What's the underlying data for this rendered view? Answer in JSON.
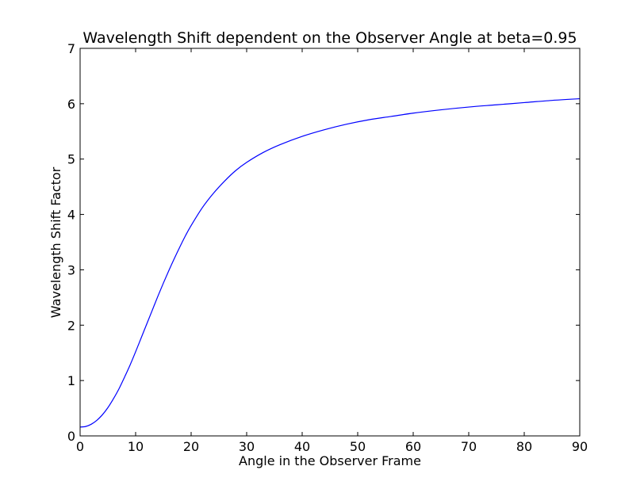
{
  "chart_data": {
    "type": "line",
    "title": "Wavelength Shift dependent on the Observer Angle at beta=0.95",
    "xlabel": "Angle in the Observer Frame",
    "ylabel": "Wavelength Shift Factor",
    "xlim": [
      0,
      90
    ],
    "ylim": [
      0,
      7
    ],
    "xticks": [
      "0",
      "10",
      "20",
      "30",
      "40",
      "50",
      "60",
      "70",
      "80",
      "90"
    ],
    "yticks": [
      "0",
      "1",
      "2",
      "3",
      "4",
      "5",
      "6",
      "7"
    ],
    "grid": false,
    "legend": "none",
    "series": [
      {
        "color": "#0000ff",
        "x": [
          0,
          1,
          2,
          3,
          4,
          5,
          6,
          7,
          8,
          9,
          10,
          11,
          12,
          13,
          14,
          15,
          16,
          17,
          18,
          19,
          20,
          22,
          24,
          26,
          28,
          30,
          33,
          36,
          40,
          44,
          48,
          52,
          56,
          60,
          65,
          70,
          75,
          80,
          85,
          90
        ],
        "y": [
          0.16,
          0.17,
          0.21,
          0.28,
          0.38,
          0.51,
          0.67,
          0.85,
          1.06,
          1.28,
          1.52,
          1.77,
          2.02,
          2.27,
          2.52,
          2.76,
          2.99,
          3.21,
          3.42,
          3.62,
          3.8,
          4.12,
          4.38,
          4.6,
          4.79,
          4.94,
          5.12,
          5.26,
          5.41,
          5.53,
          5.63,
          5.71,
          5.77,
          5.83,
          5.89,
          5.94,
          5.98,
          6.02,
          6.06,
          6.09
        ]
      }
    ]
  }
}
